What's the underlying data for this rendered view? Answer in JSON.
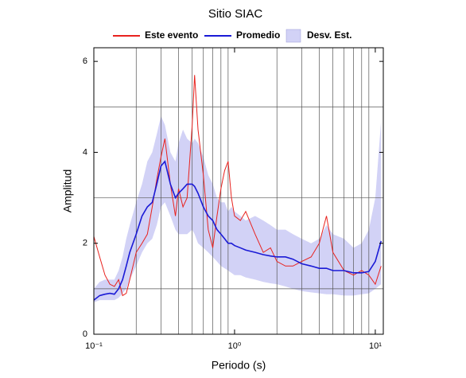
{
  "chart_data": {
    "type": "line",
    "title": "Sitio SIAC",
    "x_label": "Periodo (s)",
    "y_label": "Amplitud",
    "log_x": true,
    "xlim": [
      0.1,
      11.4
    ],
    "ylim": [
      0,
      6.3
    ],
    "xticks": [
      {
        "value": 0.1,
        "label": "10⁻¹"
      },
      {
        "value": 1,
        "label": "10⁰"
      },
      {
        "value": 10,
        "label": "10¹"
      }
    ],
    "yticks": [
      0,
      2,
      4,
      6
    ],
    "xgrid": [
      0.2,
      0.3,
      0.4,
      0.5,
      0.6,
      0.7,
      0.8,
      0.9,
      2,
      3,
      4,
      5,
      6,
      7,
      8,
      9
    ],
    "ygrid": [
      1,
      3,
      5
    ],
    "x": [
      0.1,
      0.11,
      0.12,
      0.13,
      0.14,
      0.15,
      0.16,
      0.17,
      0.18,
      0.2,
      0.22,
      0.24,
      0.26,
      0.28,
      0.3,
      0.32,
      0.35,
      0.38,
      0.4,
      0.43,
      0.46,
      0.5,
      0.52,
      0.55,
      0.6,
      0.65,
      0.7,
      0.75,
      0.8,
      0.85,
      0.9,
      0.95,
      1.0,
      1.1,
      1.2,
      1.4,
      1.6,
      1.8,
      2.0,
      2.3,
      2.6,
      3.0,
      3.5,
      4,
      4.5,
      5,
      6,
      7,
      8,
      9,
      10,
      11
    ],
    "band": {
      "name": "Desv. Est.",
      "color": "#d2d2f6",
      "upper": [
        1.0,
        1.15,
        1.2,
        1.2,
        1.2,
        1.4,
        1.7,
        2.1,
        2.4,
        2.9,
        3.3,
        3.8,
        4.0,
        4.4,
        4.8,
        4.6,
        4.0,
        3.8,
        4.2,
        4.5,
        4.3,
        4.2,
        4.3,
        4.2,
        3.9,
        3.5,
        3.3,
        3.0,
        2.9,
        2.9,
        2.7,
        2.8,
        2.7,
        2.6,
        2.5,
        2.6,
        2.5,
        2.4,
        2.3,
        2.3,
        2.2,
        2.1,
        2.0,
        2.1,
        2.4,
        2.2,
        2.1,
        1.9,
        2.0,
        2.3,
        3.0,
        4.7
      ],
      "lower": [
        0.7,
        0.75,
        0.75,
        0.75,
        0.75,
        0.8,
        0.9,
        1.0,
        1.2,
        1.5,
        1.8,
        2.0,
        2.1,
        2.4,
        2.8,
        2.9,
        2.6,
        2.3,
        2.2,
        2.2,
        2.2,
        2.3,
        2.2,
        2.0,
        1.9,
        1.8,
        1.7,
        1.6,
        1.5,
        1.45,
        1.4,
        1.35,
        1.3,
        1.3,
        1.25,
        1.2,
        1.15,
        1.12,
        1.1,
        1.05,
        1.0,
        0.95,
        0.92,
        0.9,
        0.88,
        0.88,
        0.85,
        0.85,
        0.88,
        0.9,
        1.0,
        1.1
      ]
    },
    "series": [
      {
        "name": "Este evento",
        "color": "#e8221e",
        "values": [
          2.15,
          1.7,
          1.3,
          1.1,
          1.05,
          1.2,
          0.85,
          0.9,
          1.2,
          1.8,
          2.0,
          2.2,
          2.8,
          3.4,
          3.9,
          4.3,
          3.3,
          2.6,
          3.2,
          2.8,
          3.0,
          4.6,
          5.7,
          4.5,
          3.5,
          2.3,
          1.9,
          2.6,
          3.2,
          3.6,
          3.8,
          3.0,
          2.6,
          2.5,
          2.7,
          2.2,
          1.8,
          1.9,
          1.6,
          1.5,
          1.5,
          1.6,
          1.7,
          2.0,
          2.6,
          1.8,
          1.4,
          1.3,
          1.4,
          1.3,
          1.1,
          1.5
        ]
      },
      {
        "name": "Promedio",
        "color": "#1a1ad6",
        "values": [
          0.75,
          0.85,
          0.88,
          0.9,
          0.88,
          1.0,
          1.2,
          1.5,
          1.8,
          2.2,
          2.6,
          2.8,
          2.9,
          3.3,
          3.7,
          3.8,
          3.3,
          3.0,
          3.1,
          3.2,
          3.3,
          3.3,
          3.25,
          3.1,
          2.8,
          2.6,
          2.5,
          2.3,
          2.2,
          2.1,
          2.0,
          2.0,
          1.95,
          1.9,
          1.85,
          1.8,
          1.75,
          1.72,
          1.7,
          1.7,
          1.65,
          1.55,
          1.5,
          1.45,
          1.45,
          1.4,
          1.4,
          1.35,
          1.35,
          1.38,
          1.6,
          2.05
        ]
      }
    ]
  }
}
